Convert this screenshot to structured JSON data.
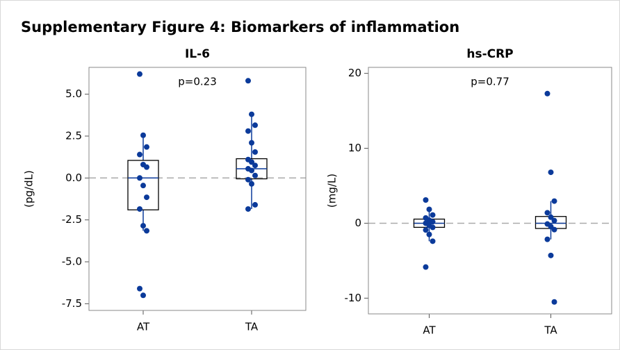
{
  "title": "Supplementary Figure 4: Biomarkers of inflammation",
  "chart_data": [
    {
      "type": "box",
      "title": "IL-6",
      "ylabel": "(pg/dL)",
      "annotation": "p=0.23",
      "categories": [
        "AT",
        "TA"
      ],
      "color": "#0b3a9a",
      "reference_line": 0,
      "ylim": [
        -7.9,
        6.6
      ],
      "yticks": [
        {
          "value": -7.5,
          "label": "-7.5"
        },
        {
          "value": -5,
          "label": "-5.0"
        },
        -2.5,
        {
          "value": 0,
          "label": "0.0"
        },
        2.5,
        {
          "value": 5,
          "label": "5.0"
        }
      ],
      "boxes": [
        {
          "q1": -1.9,
          "median": 0,
          "q3": 1.05,
          "whisker_low": -3.15,
          "whisker_high": 2.55,
          "points": [
            6.2,
            2.55,
            1.85,
            1.4,
            0.8,
            0.65,
            0,
            -0.45,
            -1.15,
            -1.85,
            -2.85,
            -3.15,
            -6.6,
            -7.0
          ]
        },
        {
          "q1": -0.05,
          "median": 0.55,
          "q3": 1.15,
          "whisker_low": -1.85,
          "whisker_high": 3.8,
          "points": [
            5.8,
            3.8,
            3.15,
            2.8,
            2.1,
            1.55,
            1.1,
            0.95,
            0.75,
            0.55,
            0.45,
            0.15,
            -0.1,
            -0.35,
            -1.6,
            -1.85
          ]
        }
      ]
    },
    {
      "type": "box",
      "title": "hs-CRP",
      "ylabel": "(mg/L)",
      "annotation": "p=0.77",
      "categories": [
        "AT",
        "TA"
      ],
      "color": "#0b3a9a",
      "reference_line": 0,
      "ylim": [
        -12.1,
        20.8
      ],
      "yticks": [
        -10,
        0,
        10,
        20
      ],
      "boxes": [
        {
          "q1": -0.55,
          "median": 0,
          "q3": 0.55,
          "whisker_low": -2.4,
          "whisker_high": 1.85,
          "points": [
            3.1,
            1.85,
            1.1,
            0.7,
            0.4,
            0.2,
            0,
            -0.3,
            -0.55,
            -0.9,
            -1.5,
            -2.4,
            -5.85
          ]
        },
        {
          "q1": -0.7,
          "median": 0,
          "q3": 0.9,
          "whisker_low": -2.15,
          "whisker_high": 2.95,
          "points": [
            17.3,
            6.8,
            2.95,
            1.4,
            0.8,
            0.35,
            -0.1,
            -0.45,
            -0.85,
            -2.15,
            -4.3,
            -10.5
          ]
        }
      ]
    }
  ]
}
